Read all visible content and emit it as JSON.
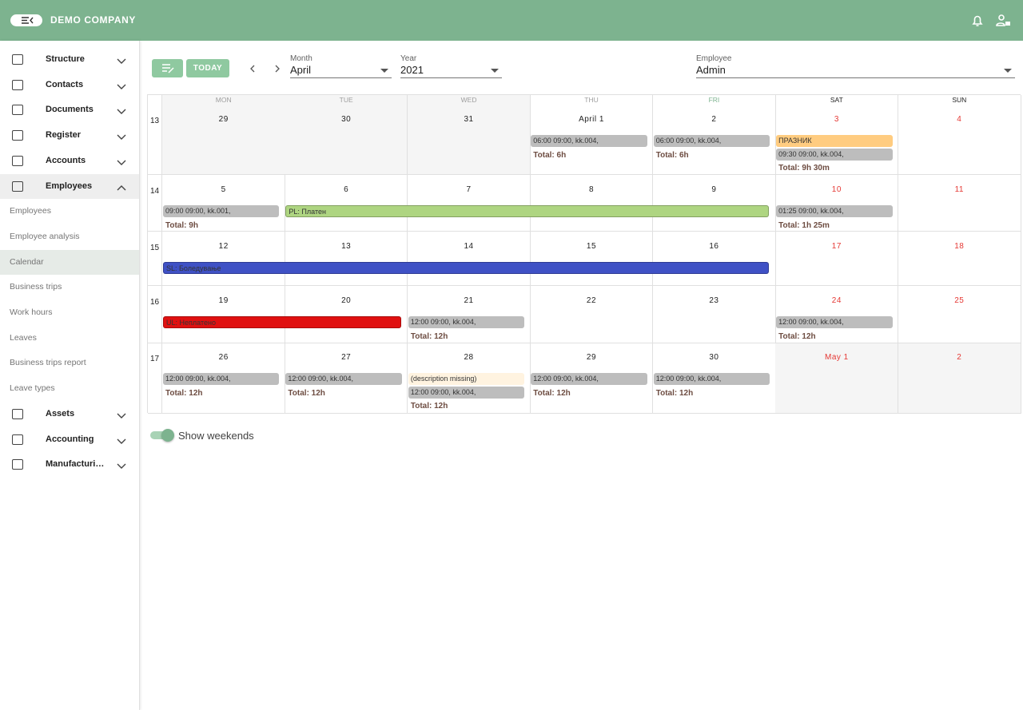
{
  "header": {
    "company": "DEMO COMPANY"
  },
  "sidebar": {
    "items": [
      {
        "label": "Structure"
      },
      {
        "label": "Contacts"
      },
      {
        "label": "Documents"
      },
      {
        "label": "Register"
      },
      {
        "label": "Accounts"
      },
      {
        "label": "Employees",
        "children": [
          {
            "label": "Employees"
          },
          {
            "label": "Employee analysis"
          },
          {
            "label": "Calendar",
            "active": true
          },
          {
            "label": "Business trips"
          },
          {
            "label": "Work hours"
          },
          {
            "label": "Leaves"
          },
          {
            "label": "Business trips report"
          },
          {
            "label": "Leave types"
          }
        ]
      },
      {
        "label": "Assets"
      },
      {
        "label": "Accounting"
      },
      {
        "label": "Manufacturi…"
      }
    ]
  },
  "toolbar": {
    "today": "TODAY",
    "month_label": "Month",
    "month": "April",
    "year_label": "Year",
    "year": "2021",
    "employee_label": "Employee",
    "employee": "Admin"
  },
  "calendar": {
    "weekdays": [
      "MON",
      "TUE",
      "WED",
      "THU",
      "FRI",
      "SAT",
      "SUN"
    ],
    "weeks": [
      {
        "number": 13,
        "days": [
          {
            "day": "29",
            "outside": true
          },
          {
            "day": "30",
            "outside": true
          },
          {
            "day": "31",
            "outside": true
          },
          {
            "day": "April 1",
            "events": [
              {
                "text": "06:00 09:00, kk.004,",
                "color": "#bdbdbd"
              }
            ],
            "total": "Total: 6h"
          },
          {
            "day": "2",
            "events": [
              {
                "text": "06:00 09:00, kk.004,",
                "color": "#bdbdbd"
              }
            ],
            "total": "Total: 6h"
          },
          {
            "day": "3",
            "events": [
              {
                "text": "ПРАЗНИК",
                "color": "#ffcc80"
              },
              {
                "text": "09:30 09:00, kk.004,",
                "color": "#bdbdbd"
              }
            ],
            "total": "Total: 9h 30m"
          },
          {
            "day": "4"
          }
        ]
      },
      {
        "number": 14,
        "days": [
          {
            "day": "5",
            "events": [
              {
                "text": "09:00 09:00, kk.001,",
                "color": "#bdbdbd"
              }
            ],
            "total": "Total: 9h"
          },
          {
            "day": "6"
          },
          {
            "day": "7"
          },
          {
            "day": "8"
          },
          {
            "day": "9"
          },
          {
            "day": "10",
            "events": [
              {
                "text": "01:25 09:00, kk.004,",
                "color": "#bdbdbd"
              }
            ],
            "total": "Total: 1h 25m"
          },
          {
            "day": "11"
          }
        ],
        "spans": [
          {
            "text": "PL: Платен",
            "color": "#aed581",
            "start": 1,
            "end": 4
          }
        ]
      },
      {
        "number": 15,
        "days": [
          {
            "day": "12"
          },
          {
            "day": "13"
          },
          {
            "day": "14"
          },
          {
            "day": "15"
          },
          {
            "day": "16"
          },
          {
            "day": "17"
          },
          {
            "day": "18"
          }
        ],
        "spans": [
          {
            "text": "SL: Боледување",
            "color": "#3f51c5",
            "start": 0,
            "end": 4
          }
        ]
      },
      {
        "number": 16,
        "days": [
          {
            "day": "19"
          },
          {
            "day": "20"
          },
          {
            "day": "21",
            "events": [
              {
                "text": "12:00 09:00, kk.004,",
                "color": "#bdbdbd"
              }
            ],
            "total": "Total: 12h"
          },
          {
            "day": "22"
          },
          {
            "day": "23"
          },
          {
            "day": "24",
            "events": [
              {
                "text": "12:00 09:00, kk.004,",
                "color": "#bdbdbd"
              }
            ],
            "total": "Total: 12h"
          },
          {
            "day": "25"
          }
        ],
        "spans": [
          {
            "text": "UL: Неплатено",
            "color": "#e01010",
            "start": 0,
            "end": 1
          }
        ]
      },
      {
        "number": 17,
        "days": [
          {
            "day": "26",
            "events": [
              {
                "text": "12:00 09:00, kk.004,",
                "color": "#bdbdbd"
              }
            ],
            "total": "Total: 12h"
          },
          {
            "day": "27",
            "events": [
              {
                "text": "12:00 09:00, kk.004,",
                "color": "#bdbdbd"
              }
            ],
            "total": "Total: 12h"
          },
          {
            "day": "28",
            "events": [
              {
                "text": "(description missing)",
                "color": "#fff3e0"
              },
              {
                "text": "12:00 09:00, kk.004,",
                "color": "#bdbdbd"
              }
            ],
            "total": "Total: 12h"
          },
          {
            "day": "29",
            "events": [
              {
                "text": "12:00 09:00, kk.004,",
                "color": "#bdbdbd"
              }
            ],
            "total": "Total: 12h"
          },
          {
            "day": "30",
            "events": [
              {
                "text": "12:00 09:00, kk.004,",
                "color": "#bdbdbd"
              }
            ],
            "total": "Total: 12h"
          },
          {
            "day": "May 1",
            "outside": true
          },
          {
            "day": "2",
            "outside": true
          }
        ]
      }
    ]
  },
  "footer": {
    "toggle": "Show weekends"
  }
}
